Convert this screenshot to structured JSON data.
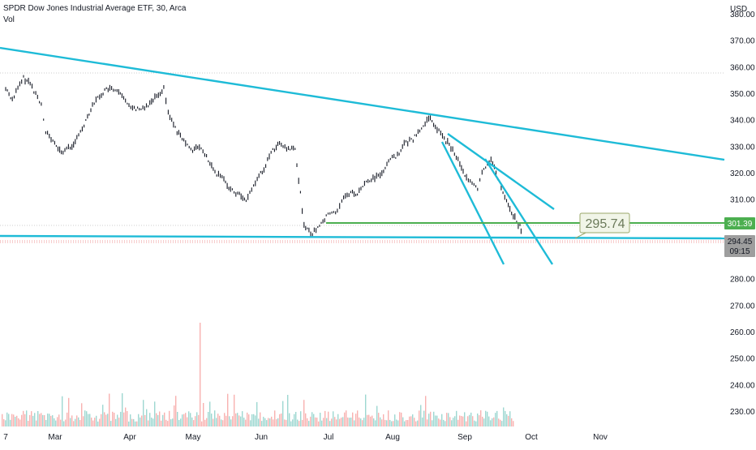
{
  "header": {
    "symbol_line": "SPDR Dow Jones Industrial Average ETF, 30, Arca",
    "vol_label": "Vol"
  },
  "price_axis": {
    "currency": "USD",
    "ticks": [
      "380.00",
      "370.00",
      "360.00",
      "350.00",
      "340.00",
      "330.00",
      "320.00",
      "310.00",
      "300.00",
      "290.00",
      "280.00",
      "270.00",
      "260.00",
      "250.00",
      "240.00",
      "230.00"
    ]
  },
  "time_axis": {
    "labels": [
      "7",
      "Mar",
      "Apr",
      "May",
      "Jun",
      "Jul",
      "Aug",
      "Sep",
      "Oct",
      "Nov"
    ]
  },
  "badges": {
    "support_price": "301.39",
    "last_price": "294.45",
    "countdown": "09:15",
    "callout": "295.74"
  },
  "colors": {
    "trendline": "#1EBBD7",
    "support": "#4CAF50",
    "up_candle": "#26A69A",
    "down_candle": "#131722",
    "callout_bg": "#F1F5E8",
    "last_price_bg": "#9E9E9E"
  },
  "chart_data": {
    "type": "line",
    "title": "SPDR Dow Jones Industrial Average ETF, 30, Arca",
    "ylabel": "USD",
    "ylim": [
      225,
      382
    ],
    "x": [
      "2022-02-07",
      "2022-02-10",
      "2022-02-15",
      "2022-02-18",
      "2022-02-23",
      "2022-02-25",
      "2022-03-01",
      "2022-03-04",
      "2022-03-08",
      "2022-03-11",
      "2022-03-15",
      "2022-03-18",
      "2022-03-22",
      "2022-03-25",
      "2022-03-29",
      "2022-04-01",
      "2022-04-05",
      "2022-04-08",
      "2022-04-12",
      "2022-04-15",
      "2022-04-19",
      "2022-04-21",
      "2022-04-25",
      "2022-04-28",
      "2022-05-02",
      "2022-05-05",
      "2022-05-09",
      "2022-05-12",
      "2022-05-16",
      "2022-05-19",
      "2022-05-23",
      "2022-05-26",
      "2022-05-31",
      "2022-06-03",
      "2022-06-07",
      "2022-06-10",
      "2022-06-14",
      "2022-06-17",
      "2022-06-21",
      "2022-06-24",
      "2022-06-28",
      "2022-07-01",
      "2022-07-06",
      "2022-07-08",
      "2022-07-12",
      "2022-07-15",
      "2022-07-19",
      "2022-07-22",
      "2022-07-26",
      "2022-07-29",
      "2022-08-02",
      "2022-08-05",
      "2022-08-09",
      "2022-08-12",
      "2022-08-16",
      "2022-08-19",
      "2022-08-23",
      "2022-08-26",
      "2022-08-30",
      "2022-09-02",
      "2022-09-07",
      "2022-09-09",
      "2022-09-13",
      "2022-09-16",
      "2022-09-20",
      "2022-09-23",
      "2022-09-26",
      "2022-09-27"
    ],
    "series": [
      {
        "values": [
          352,
          348,
          356,
          354,
          346,
          336,
          331,
          328,
          330,
          333,
          340,
          346,
          350,
          352,
          351,
          348,
          345,
          344,
          346,
          349,
          352,
          343,
          336,
          332,
          329,
          330,
          325,
          320,
          318,
          314,
          312,
          310,
          318,
          322,
          329,
          331,
          329,
          329,
          301,
          297,
          300,
          304,
          306,
          310,
          313,
          312,
          317,
          318,
          320,
          325,
          327,
          331,
          333,
          336,
          341,
          338,
          333,
          330,
          324,
          318,
          314,
          320,
          326,
          318,
          310,
          304,
          300,
          295.74
        ]
      }
    ],
    "volume": {
      "spike_date": "2022-05-05",
      "ylim": [
        0,
        1
      ]
    },
    "annotations": [
      "301.39",
      "295.74"
    ]
  }
}
